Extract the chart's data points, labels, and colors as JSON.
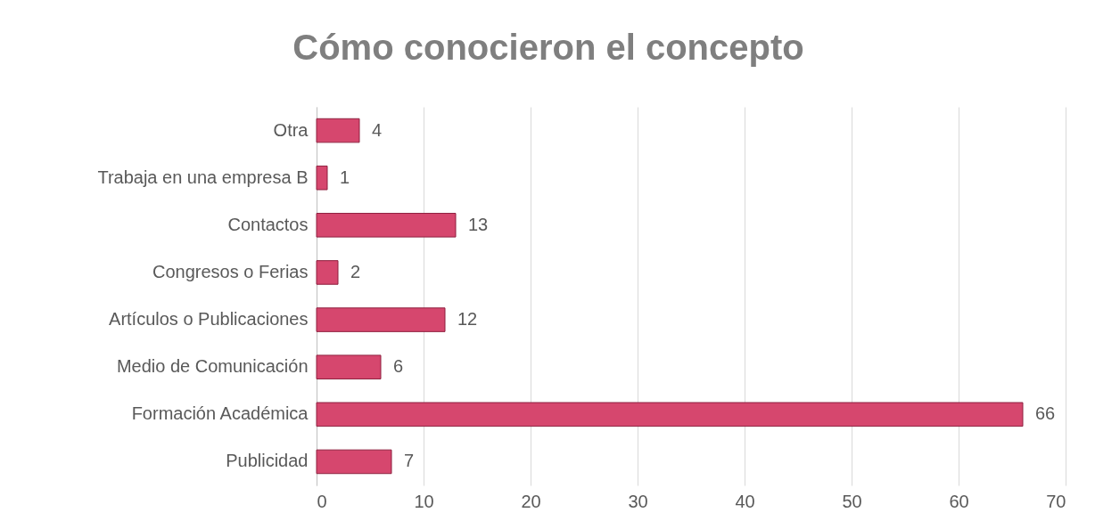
{
  "chart_data": {
    "type": "bar",
    "orientation": "horizontal",
    "title": "Cómo conocieron el concepto",
    "categories": [
      "Otra",
      "Trabaja en una empresa B",
      "Contactos",
      "Congresos o Ferias",
      "Artículos o Publicaciones",
      "Medio de Comunicación",
      "Formación Académica",
      "Publicidad"
    ],
    "values": [
      4,
      1,
      13,
      2,
      12,
      6,
      66,
      7
    ],
    "color": "#d6476e",
    "xlim": [
      0,
      70
    ],
    "xticks": [
      0,
      10,
      20,
      30,
      40,
      50,
      60,
      70
    ],
    "grid": "x",
    "data_labels": true
  }
}
